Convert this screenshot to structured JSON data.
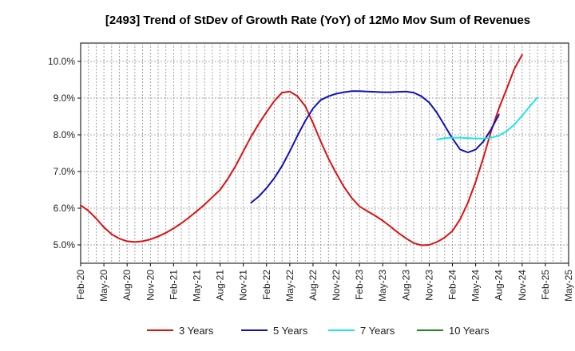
{
  "chart_data": {
    "type": "line",
    "title": "[2493]  Trend of StDev of Growth Rate (YoY) of 12Mo Mov Sum of Revenues",
    "xlabel": "",
    "ylabel": "",
    "ylim": [
      4.5,
      10.5
    ],
    "y_ticks": [
      5.0,
      6.0,
      7.0,
      8.0,
      9.0,
      10.0
    ],
    "y_tick_labels": [
      "5.0%",
      "6.0%",
      "7.0%",
      "8.0%",
      "9.0%",
      "10.0%"
    ],
    "x_tick_labels": [
      "Feb-20",
      "May-20",
      "Aug-20",
      "Nov-20",
      "Feb-21",
      "May-21",
      "Aug-21",
      "Nov-21",
      "Feb-22",
      "May-22",
      "Aug-22",
      "Nov-22",
      "Feb-23",
      "May-23",
      "Aug-23",
      "Nov-23",
      "Feb-24",
      "May-24",
      "Aug-24",
      "Nov-24",
      "Feb-25",
      "May-25"
    ],
    "x_count": 64,
    "grid": true,
    "legend_position": "bottom",
    "series": [
      {
        "name": "3 Years",
        "color": "#dd1111",
        "start_index": 0,
        "values": [
          6.08,
          5.93,
          5.72,
          5.48,
          5.29,
          5.17,
          5.1,
          5.08,
          5.1,
          5.15,
          5.23,
          5.33,
          5.45,
          5.59,
          5.75,
          5.92,
          6.1,
          6.3,
          6.5,
          6.8,
          7.15,
          7.55,
          7.95,
          8.3,
          8.62,
          8.92,
          9.15,
          9.18,
          9.05,
          8.78,
          8.32,
          7.82,
          7.35,
          6.95,
          6.58,
          6.28,
          6.05,
          5.92,
          5.8,
          5.66,
          5.5,
          5.33,
          5.18,
          5.05,
          4.99,
          5.0,
          5.08,
          5.2,
          5.38,
          5.7,
          6.15,
          6.72,
          7.38,
          8.1,
          8.72,
          9.25,
          9.8,
          10.18
        ]
      },
      {
        "name": "5 Years",
        "color": "#1111bb",
        "start_index": 22,
        "values": [
          6.15,
          6.32,
          6.55,
          6.82,
          7.15,
          7.55,
          7.98,
          8.38,
          8.72,
          8.95,
          9.05,
          9.12,
          9.16,
          9.19,
          9.19,
          9.18,
          9.17,
          9.16,
          9.16,
          9.17,
          9.18,
          9.15,
          9.05,
          8.88,
          8.6,
          8.25,
          7.9,
          7.6,
          7.52,
          7.6,
          7.82,
          8.15,
          8.55
        ]
      },
      {
        "name": "7 Years",
        "color": "#22e5e5",
        "start_index": 46,
        "values": [
          7.87,
          7.91,
          7.92,
          7.92,
          7.91,
          7.9,
          7.9,
          7.92,
          7.98,
          8.1,
          8.28,
          8.52,
          8.78,
          9.02
        ]
      },
      {
        "name": "10 Years",
        "color": "#228822",
        "start_index": 0,
        "values": []
      }
    ]
  }
}
